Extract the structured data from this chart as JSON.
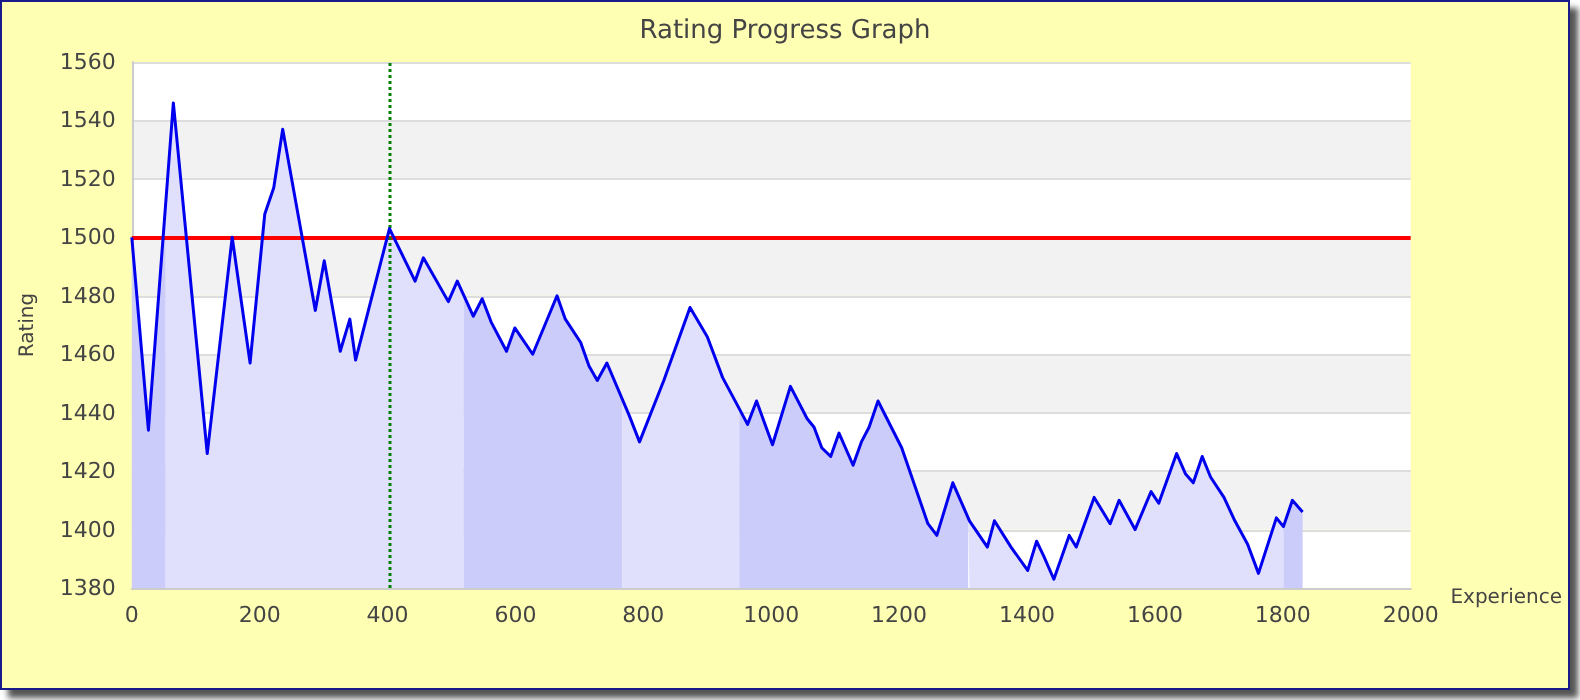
{
  "chart_data": {
    "type": "line",
    "title": "Rating Progress Graph",
    "xlabel": "Experience",
    "ylabel": "Rating",
    "x": [
      0,
      26,
      65,
      118,
      157,
      185,
      208,
      222,
      236,
      287,
      301,
      326,
      341,
      350,
      403,
      443,
      456,
      495,
      509,
      534,
      548,
      562,
      586,
      599,
      627,
      665,
      678,
      702,
      715,
      728,
      743,
      778,
      794,
      832,
      873,
      900,
      924,
      946,
      963,
      977,
      1002,
      1030,
      1056,
      1067,
      1079,
      1093,
      1106,
      1128,
      1141,
      1153,
      1167,
      1204,
      1245,
      1259,
      1284,
      1310,
      1338,
      1349,
      1375,
      1401,
      1415,
      1426,
      1442,
      1466,
      1477,
      1505,
      1530,
      1544,
      1569,
      1594,
      1606,
      1634,
      1648,
      1660,
      1674,
      1687,
      1708,
      1725,
      1745,
      1762,
      1790,
      1801,
      1815,
      1831
    ],
    "series": [
      {
        "color": "#0000ee",
        "values": [
          1500,
          1434,
          1546,
          1426,
          1500,
          1457,
          1508,
          1517,
          1537,
          1475,
          1492,
          1461,
          1472,
          1458,
          1503,
          1485,
          1493,
          1478,
          1485,
          1473,
          1479,
          1471,
          1461,
          1469,
          1460,
          1480,
          1472,
          1464,
          1456,
          1451,
          1457,
          1439,
          1430,
          1451,
          1476,
          1466,
          1452,
          1443,
          1436,
          1444,
          1429,
          1449,
          1438,
          1435,
          1428,
          1425,
          1433,
          1422,
          1430,
          1435,
          1444,
          1428,
          1402,
          1398,
          1416,
          1403,
          1394,
          1403,
          1394,
          1386,
          1396,
          1391,
          1383,
          1398,
          1394,
          1411,
          1402,
          1410,
          1400,
          1413,
          1409,
          1426,
          1419,
          1416,
          1425,
          1418,
          1411,
          1403,
          1395,
          1385,
          1404,
          1401,
          1410,
          1406
        ]
      },
      {
        "type": "area",
        "color": "#ccccfa",
        "x": [
          0,
          26,
          53
        ],
        "values": [
          1500,
          1434,
          1512
        ]
      },
      {
        "type": "area",
        "color": "#e0e0fc",
        "x": [
          53,
          65,
          118,
          157,
          185,
          208,
          222,
          236,
          287,
          301,
          326,
          341,
          350,
          403,
          443,
          456,
          495,
          509,
          519
        ],
        "values": [
          1512,
          1546,
          1426,
          1500,
          1457,
          1508,
          1517,
          1537,
          1475,
          1492,
          1461,
          1472,
          1458,
          1503,
          1485,
          1493,
          1478,
          1485,
          1480
        ]
      },
      {
        "type": "area",
        "color": "#ccccfa",
        "x": [
          519,
          534,
          548,
          562,
          586,
          599,
          627,
          665,
          678,
          702,
          715,
          728,
          743,
          767
        ],
        "values": [
          1480,
          1473,
          1479,
          1471,
          1461,
          1469,
          1460,
          1480,
          1472,
          1464,
          1456,
          1451,
          1457,
          1445
        ]
      },
      {
        "type": "area",
        "color": "#e0e0fc",
        "x": [
          767,
          778,
          794,
          832,
          873,
          900,
          924,
          946,
          950
        ],
        "values": [
          1445,
          1439,
          1430,
          1451,
          1476,
          1466,
          1452,
          1443,
          1441
        ]
      },
      {
        "type": "area",
        "color": "#ccccfa",
        "x": [
          950,
          963,
          977,
          1002,
          1030,
          1056,
          1067,
          1079,
          1093,
          1106,
          1128,
          1141,
          1153,
          1167,
          1204,
          1245,
          1259,
          1284,
          1308
        ],
        "values": [
          1441,
          1436,
          1444,
          1429,
          1449,
          1438,
          1435,
          1428,
          1425,
          1433,
          1422,
          1430,
          1435,
          1444,
          1428,
          1402,
          1398,
          1416,
          1404
        ]
      },
      {
        "type": "area",
        "color": "#e0e0fc",
        "x": [
          1308,
          1310,
          1338,
          1349,
          1375,
          1401,
          1415,
          1426,
          1442,
          1466,
          1477,
          1505,
          1530,
          1544,
          1569,
          1594,
          1606,
          1634,
          1648,
          1660,
          1674,
          1687,
          1708,
          1725,
          1745,
          1762,
          1790,
          1801
        ],
        "values": [
          1404,
          1403,
          1394,
          1403,
          1394,
          1386,
          1396,
          1391,
          1383,
          1398,
          1394,
          1411,
          1402,
          1410,
          1400,
          1413,
          1409,
          1426,
          1419,
          1416,
          1425,
          1418,
          1411,
          1403,
          1395,
          1385,
          1404,
          1401
        ]
      },
      {
        "type": "area",
        "color": "#ccccfa",
        "x": [
          1801,
          1815,
          1831
        ],
        "values": [
          1401,
          1410,
          1406
        ]
      }
    ],
    "xlim": [
      0,
      2000
    ],
    "xticks": [
      0,
      200,
      400,
      600,
      800,
      1000,
      1200,
      1400,
      1600,
      1800,
      2000
    ],
    "ylim": [
      1380,
      1560
    ],
    "yticks": [
      1380,
      1400,
      1420,
      1440,
      1460,
      1480,
      1500,
      1520,
      1540,
      1560
    ],
    "grid": "y",
    "marker": "none",
    "line_style": "solid",
    "ref_lines": [
      {
        "axis": "y",
        "value": 1500,
        "color": "#ff0000",
        "line_style": "solid"
      },
      {
        "axis": "x",
        "value": 403,
        "color": "#008000",
        "line_style": "dotted"
      }
    ]
  }
}
